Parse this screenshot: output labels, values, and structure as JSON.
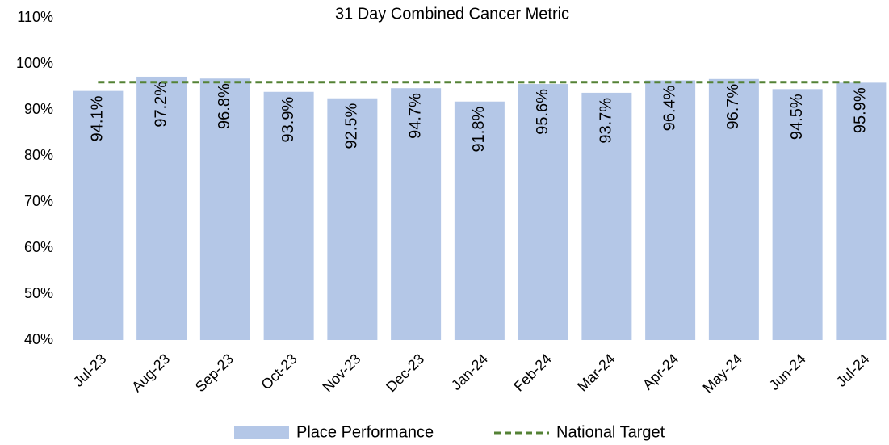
{
  "chart_data": {
    "type": "bar",
    "title": "31 Day Combined Cancer Metric",
    "categories": [
      "Jul-23",
      "Aug-23",
      "Sep-23",
      "Oct-23",
      "Nov-23",
      "Dec-23",
      "Jan-24",
      "Feb-24",
      "Mar-24",
      "Apr-24",
      "May-24",
      "Jun-24",
      "Jul-24"
    ],
    "series": [
      {
        "name": "Place Performance",
        "type": "bar",
        "color": "#b4c7e7",
        "values": [
          94.1,
          97.2,
          96.8,
          93.9,
          92.5,
          94.7,
          91.8,
          95.6,
          93.7,
          96.4,
          96.7,
          94.5,
          95.9
        ],
        "value_labels": [
          "94.1%",
          "97.2%",
          "96.8%",
          "93.9%",
          "92.5%",
          "94.7%",
          "91.8%",
          "95.6%",
          "93.7%",
          "96.4%",
          "96.7%",
          "94.5%",
          "95.9%"
        ]
      },
      {
        "name": "National Target",
        "type": "line",
        "color": "#548235",
        "dashed": true,
        "values": [
          96,
          96,
          96,
          96,
          96,
          96,
          96,
          96,
          96,
          96,
          96,
          96,
          96
        ]
      }
    ],
    "ylim": [
      40,
      110
    ],
    "yticks": [
      {
        "value": 40,
        "label": "40%"
      },
      {
        "value": 50,
        "label": "50%"
      },
      {
        "value": 60,
        "label": "60%"
      },
      {
        "value": 70,
        "label": "70%"
      },
      {
        "value": 80,
        "label": "80%"
      },
      {
        "value": 90,
        "label": "90%"
      },
      {
        "value": 100,
        "label": "100%"
      },
      {
        "value": 110,
        "label": "110%"
      }
    ],
    "grid": false,
    "legend": "bottom"
  }
}
